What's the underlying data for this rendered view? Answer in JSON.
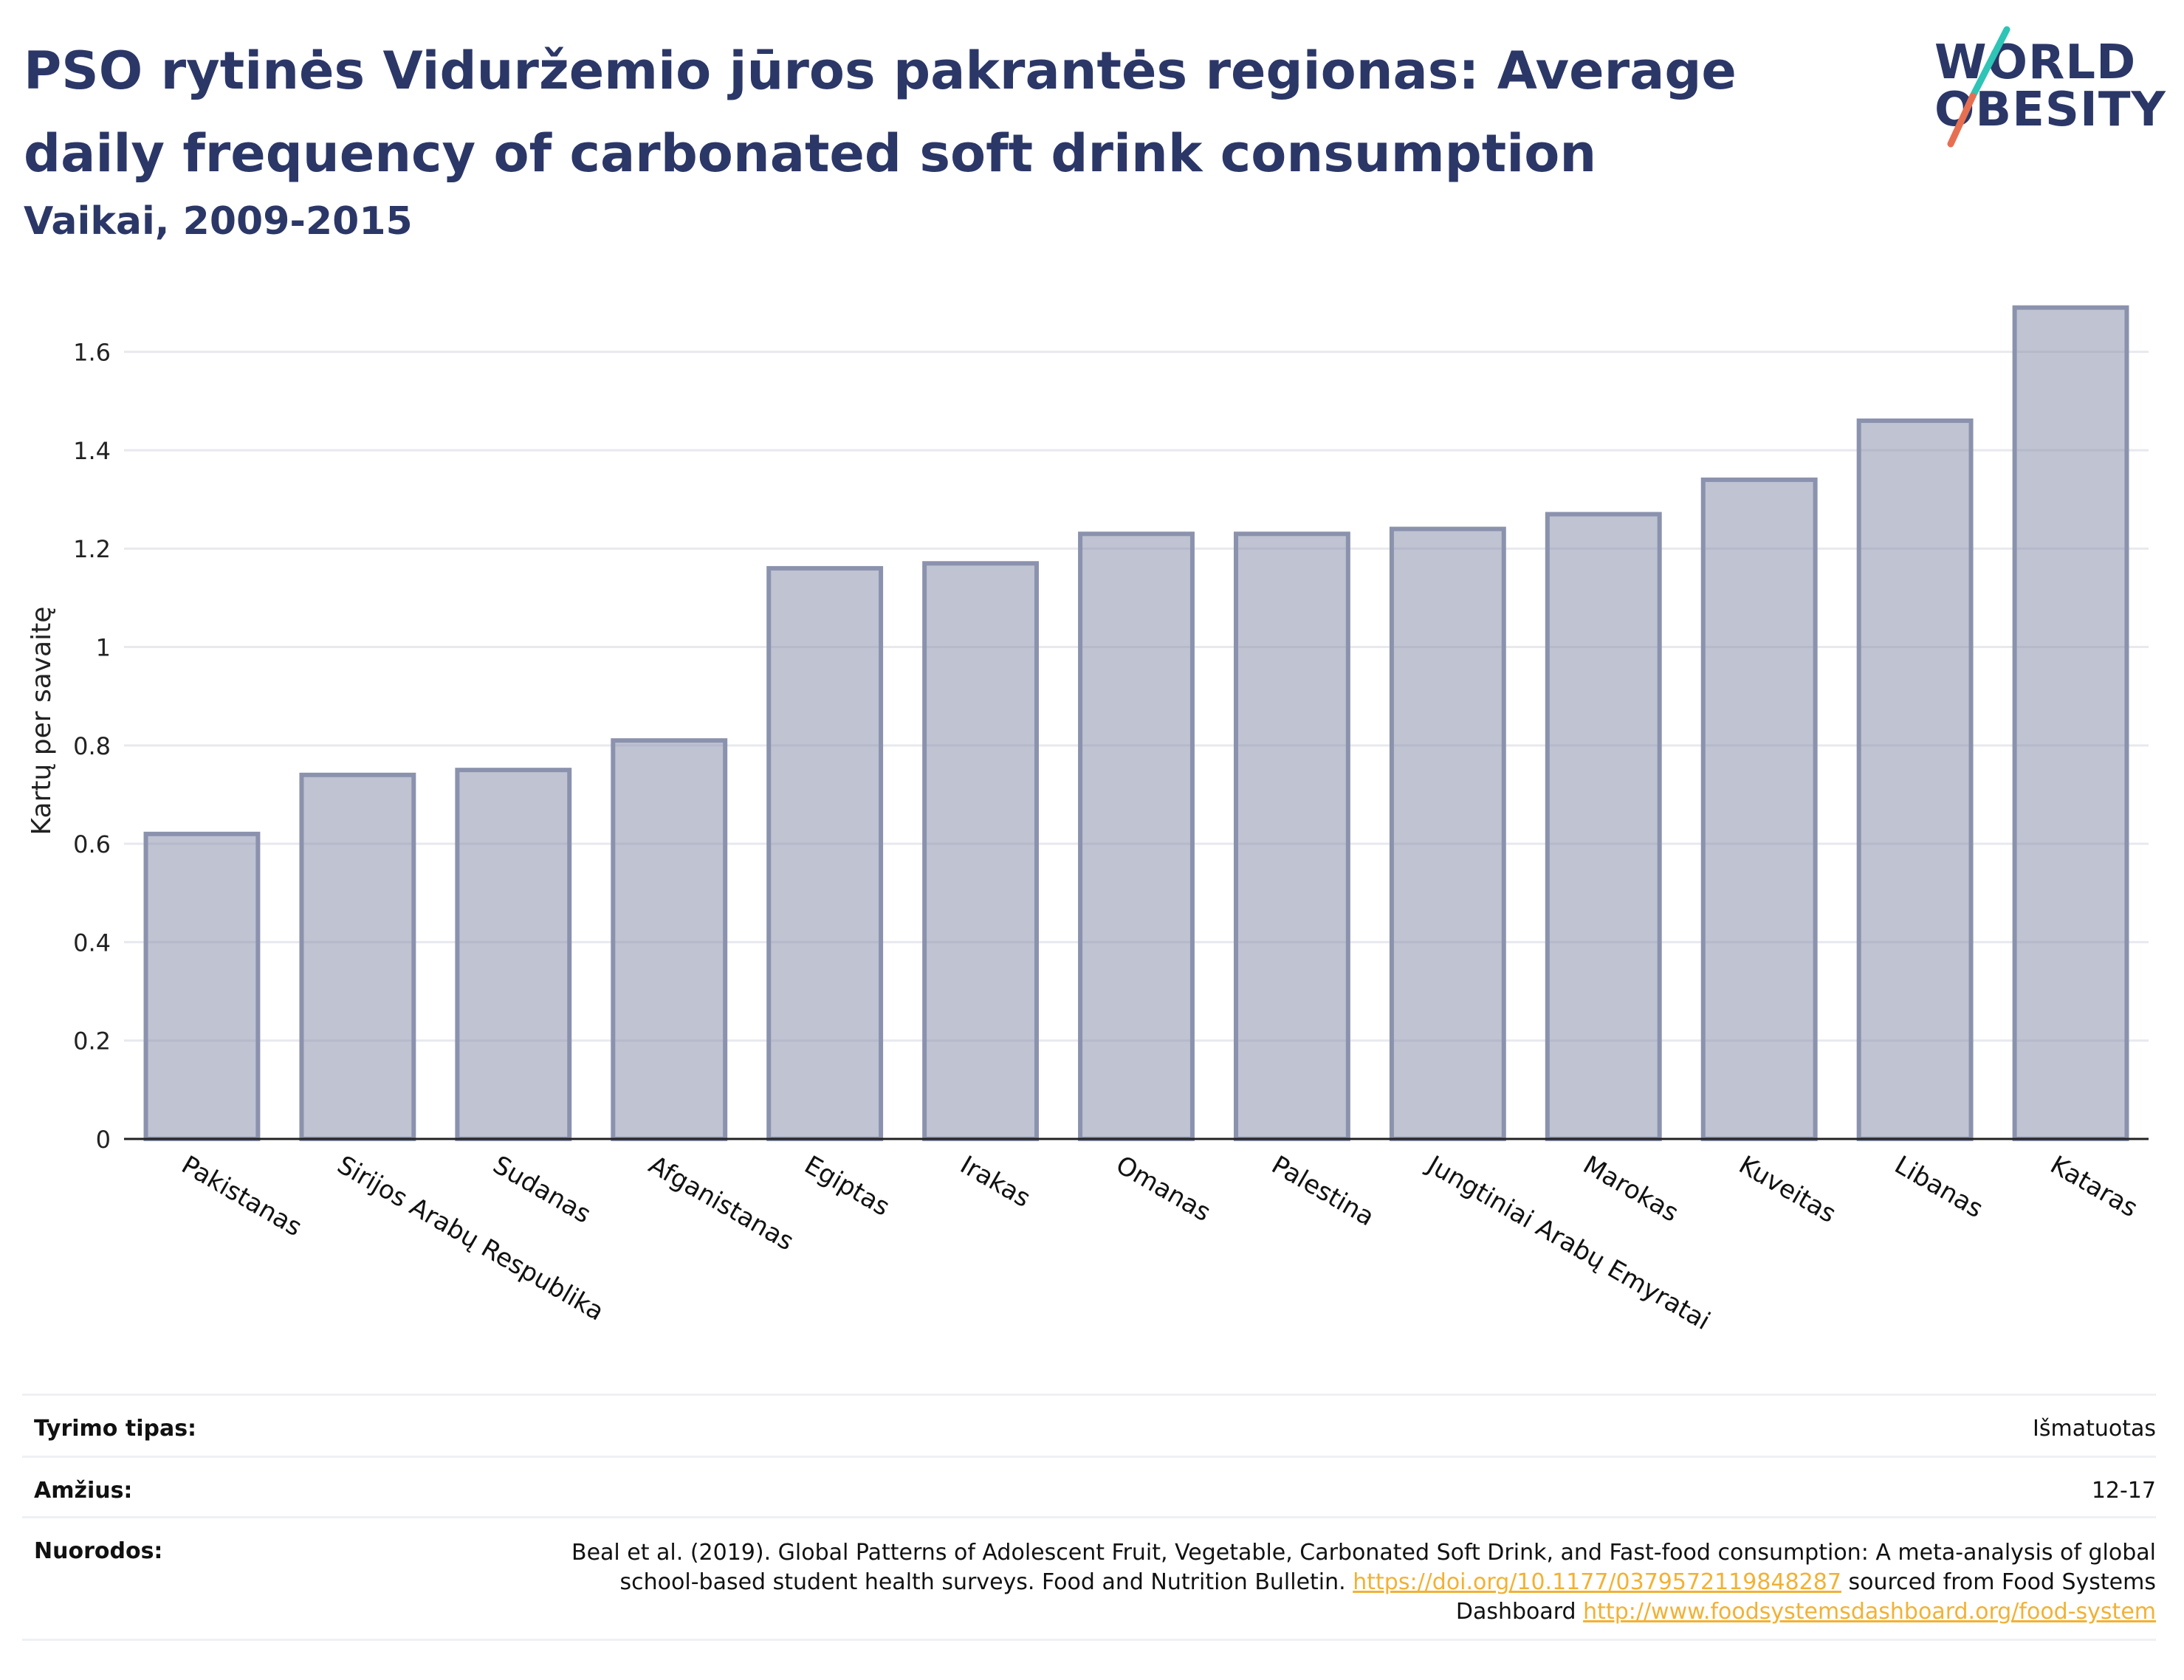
{
  "header": {
    "title": "PSO rytinės Viduržemio jūros pakrantės regionas: Average daily frequency of carbonated soft drink consumption",
    "subtitle": "Vaikai, 2009-2015"
  },
  "logo": {
    "line1": "WORLD",
    "line2": "OBESITY",
    "accent_colors": [
      "#2ec4b6",
      "#e76f51"
    ]
  },
  "chart_data": {
    "type": "bar",
    "title": "PSO rytinės Viduržemio jūros pakrantės regionas: Average daily frequency of carbonated soft drink consumption",
    "subtitle": "Vaikai, 2009-2015",
    "xlabel": "",
    "ylabel": "Kartų per savaitę",
    "ylim": [
      0,
      1.7
    ],
    "yticks": [
      0,
      0.2,
      0.4,
      0.6,
      0.8,
      1,
      1.2,
      1.4,
      1.6
    ],
    "ytick_labels": [
      "0",
      "0.2",
      "0.4",
      "0.6",
      "0.8",
      "1",
      "1.2",
      "1.4",
      "1.6"
    ],
    "grid": true,
    "bar_color": "#8b92ad",
    "categories": [
      "Pakistanas",
      "Sirijos Arabų Respublika",
      "Sudanas",
      "Afganistanas",
      "Egiptas",
      "Irakas",
      "Omanas",
      "Palestina",
      "Jungtiniai Arabų Emyratai",
      "Marokas",
      "Kuveitas",
      "Libanas",
      "Kataras"
    ],
    "values": [
      0.62,
      0.74,
      0.75,
      0.81,
      1.16,
      1.17,
      1.23,
      1.23,
      1.24,
      1.27,
      1.34,
      1.46,
      1.69
    ]
  },
  "meta": {
    "study_type": {
      "label": "Tyrimo tipas:",
      "value": "Išmatuotas"
    },
    "age": {
      "label": "Amžius:",
      "value": "12-17"
    },
    "references": {
      "label": "Nuorodos:",
      "text1": "Beal et al. (2019). Global Patterns of Adolescent Fruit, Vegetable, Carbonated Soft Drink, and Fast-food consumption: A meta-analysis of global school-based student health surveys. Food and Nutrition Bulletin.",
      "link1": "https://doi.org/10.1177/0379572119848287",
      "text2": "sourced from Food Systems Dashboard",
      "link2": "http://www.foodsystemsdashboard.org/food-system"
    }
  }
}
